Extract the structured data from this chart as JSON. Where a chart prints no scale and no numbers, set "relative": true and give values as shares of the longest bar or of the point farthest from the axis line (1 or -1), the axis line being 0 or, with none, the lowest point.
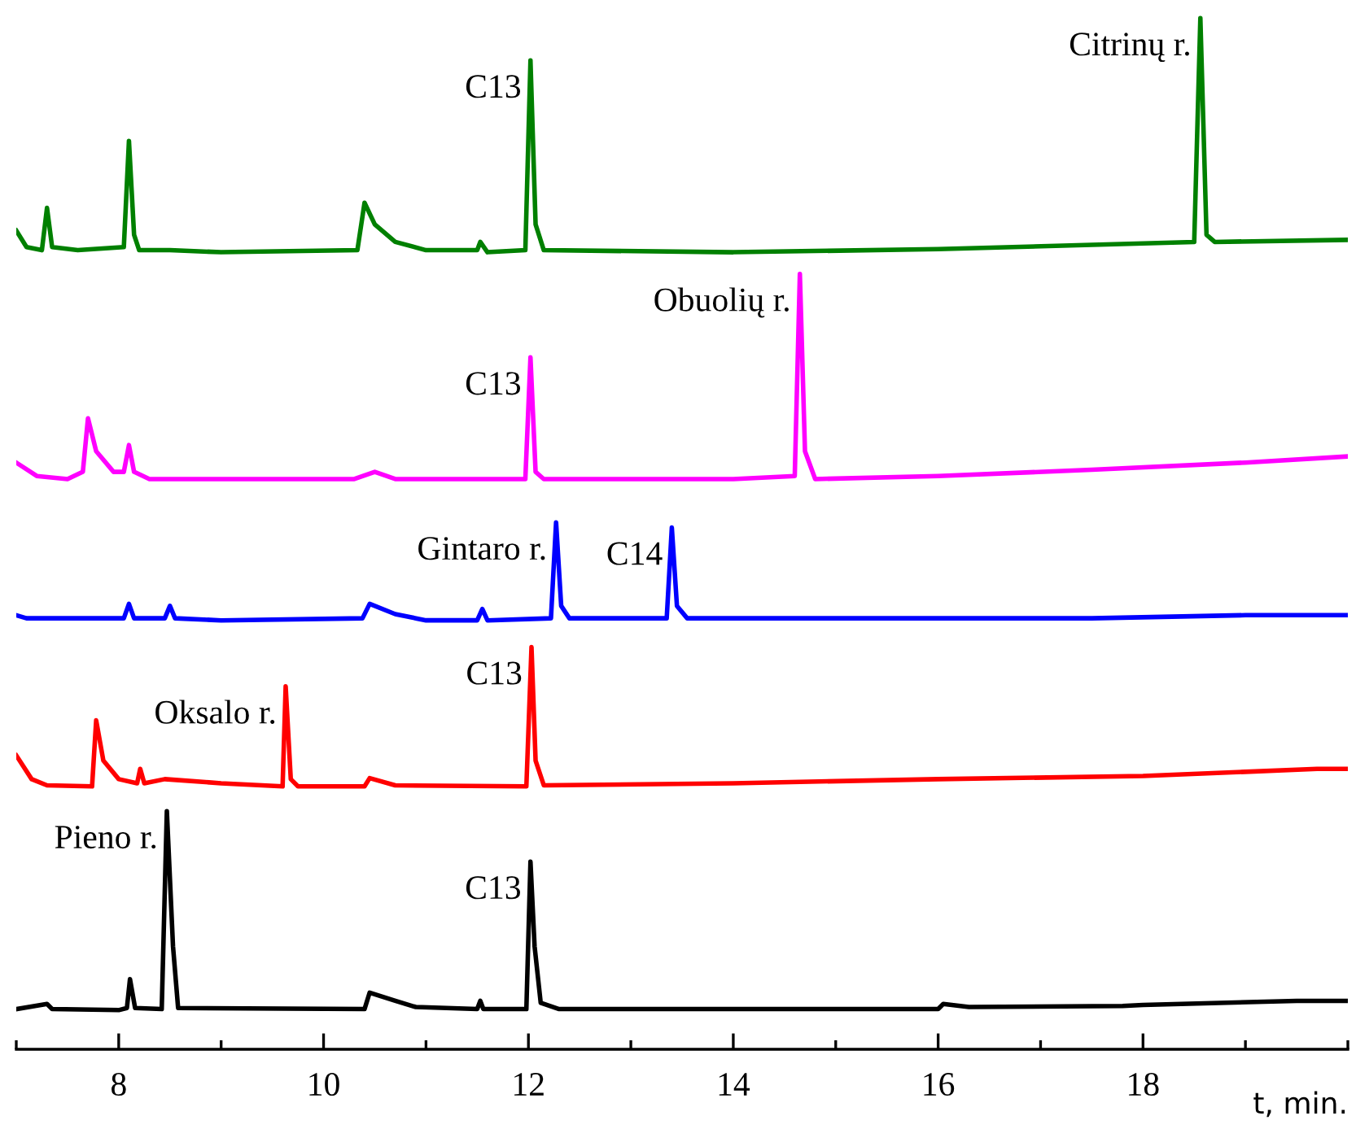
{
  "chart_data": {
    "type": "line",
    "relative": true,
    "xlabel": "t, min.",
    "xlim": [
      7,
      20
    ],
    "xticks": [
      {
        "value": 7,
        "label": null
      },
      8,
      {
        "value": 9,
        "label": null
      },
      10,
      {
        "value": 11,
        "label": null
      },
      12,
      {
        "value": 13,
        "label": null
      },
      14,
      {
        "value": 15,
        "label": null
      },
      16,
      {
        "value": 17,
        "label": null
      },
      18,
      {
        "value": 19,
        "label": null
      },
      {
        "value": 20,
        "label": null
      }
    ],
    "grid": false,
    "legend": false,
    "marker": "none",
    "line_style": "solid",
    "series": [
      {
        "color": "#000000",
        "x": [
          7.0,
          7.3,
          7.35,
          8.0,
          8.08,
          8.11,
          8.16,
          8.42,
          8.47,
          8.53,
          8.58,
          10.4,
          10.45,
          10.7,
          10.9,
          11.5,
          11.53,
          11.56,
          11.98,
          12.02,
          12.06,
          12.12,
          12.3,
          16.0,
          16.05,
          16.3,
          17.8,
          18.0,
          19.5,
          20.0
        ],
        "values": [
          0.039,
          0.044,
          0.039,
          0.038,
          0.04,
          0.068,
          0.04,
          0.039,
          0.231,
          0.1,
          0.04,
          0.039,
          0.055,
          0.047,
          0.041,
          0.039,
          0.047,
          0.039,
          0.039,
          0.182,
          0.1,
          0.045,
          0.039,
          0.039,
          0.044,
          0.041,
          0.042,
          0.043,
          0.047,
          0.047
        ]
      },
      {
        "color": "#ff0000",
        "x": [
          7.0,
          7.15,
          7.3,
          7.74,
          7.78,
          7.85,
          8.0,
          8.18,
          8.21,
          8.25,
          8.45,
          9.0,
          9.6,
          9.63,
          9.68,
          9.75,
          10.4,
          10.45,
          10.7,
          11.98,
          12.03,
          12.07,
          12.15,
          14.0,
          16.0,
          18.0,
          19.7,
          20.0
        ],
        "values": [
          0.285,
          0.262,
          0.256,
          0.255,
          0.319,
          0.28,
          0.262,
          0.258,
          0.272,
          0.258,
          0.262,
          0.258,
          0.255,
          0.352,
          0.262,
          0.255,
          0.255,
          0.263,
          0.256,
          0.255,
          0.39,
          0.28,
          0.256,
          0.258,
          0.262,
          0.265,
          0.272,
          0.272
        ]
      },
      {
        "color": "#0000ff",
        "x": [
          7.0,
          7.1,
          7.5,
          8.05,
          8.1,
          8.15,
          8.45,
          8.5,
          8.55,
          9.0,
          10.38,
          10.45,
          10.7,
          11.0,
          11.5,
          11.55,
          11.6,
          12.22,
          12.27,
          12.32,
          12.4,
          13.35,
          13.4,
          13.45,
          13.55,
          17.5,
          19.0,
          20.0
        ],
        "values": [
          0.421,
          0.418,
          0.418,
          0.418,
          0.432,
          0.418,
          0.418,
          0.43,
          0.418,
          0.416,
          0.418,
          0.432,
          0.422,
          0.416,
          0.416,
          0.427,
          0.416,
          0.418,
          0.511,
          0.43,
          0.418,
          0.418,
          0.506,
          0.43,
          0.418,
          0.418,
          0.421,
          0.421
        ]
      },
      {
        "color": "#ff00ff",
        "x": [
          7.0,
          7.2,
          7.5,
          7.65,
          7.7,
          7.78,
          7.95,
          8.05,
          8.1,
          8.15,
          8.3,
          9.0,
          10.3,
          10.5,
          10.7,
          11.97,
          12.02,
          12.07,
          12.15,
          14.0,
          14.6,
          14.65,
          14.7,
          14.8,
          16.0,
          17.5,
          19.0,
          20.0
        ],
        "values": [
          0.569,
          0.556,
          0.553,
          0.56,
          0.612,
          0.58,
          0.56,
          0.56,
          0.586,
          0.56,
          0.553,
          0.553,
          0.553,
          0.56,
          0.553,
          0.553,
          0.671,
          0.56,
          0.553,
          0.553,
          0.556,
          0.752,
          0.58,
          0.553,
          0.556,
          0.562,
          0.569,
          0.575
        ]
      },
      {
        "color": "#008000",
        "x": [
          7.0,
          7.1,
          7.25,
          7.3,
          7.35,
          7.6,
          8.05,
          8.1,
          8.15,
          8.2,
          8.5,
          9.0,
          10.33,
          10.4,
          10.5,
          10.7,
          11.0,
          11.5,
          11.53,
          11.6,
          11.97,
          12.02,
          12.07,
          12.15,
          14.0,
          16.0,
          18.5,
          18.56,
          18.62,
          18.7,
          20.0
        ],
        "values": [
          0.794,
          0.778,
          0.775,
          0.816,
          0.778,
          0.775,
          0.778,
          0.881,
          0.79,
          0.775,
          0.775,
          0.773,
          0.775,
          0.821,
          0.8,
          0.783,
          0.775,
          0.775,
          0.783,
          0.773,
          0.775,
          0.959,
          0.8,
          0.775,
          0.773,
          0.776,
          0.783,
          1.0,
          0.79,
          0.783,
          0.785
        ]
      }
    ],
    "annotations": [
      {
        "text": "Pieno r.",
        "x": 8.47,
        "y": 0.231
      },
      {
        "text": "C13",
        "x": 12.02,
        "y": 0.182
      },
      {
        "text": "Oksalo r.",
        "x": 9.63,
        "y": 0.352
      },
      {
        "text": "C13",
        "x": 12.03,
        "y": 0.39
      },
      {
        "text": "Gintaro r.",
        "x": 12.27,
        "y": 0.511
      },
      {
        "text": "C14",
        "x": 13.4,
        "y": 0.506
      },
      {
        "text": "C13",
        "x": 12.02,
        "y": 0.671
      },
      {
        "text": "Obuolių r.",
        "x": 14.65,
        "y": 0.752
      },
      {
        "text": "C13",
        "x": 12.02,
        "y": 0.959
      },
      {
        "text": "Citrinų r.",
        "x": 18.56,
        "y": 1.0
      }
    ]
  }
}
